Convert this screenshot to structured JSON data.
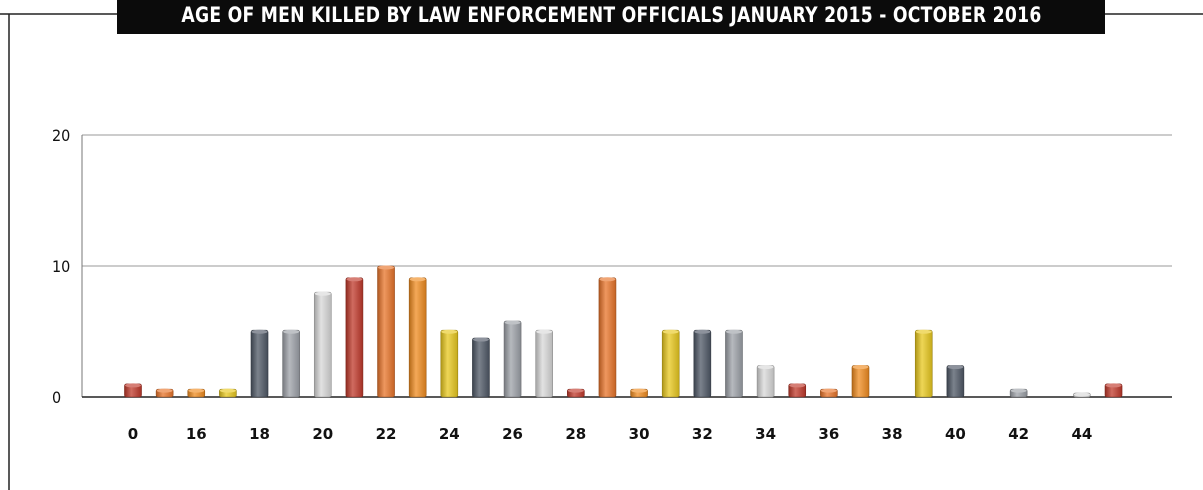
{
  "title": "AGE OF MEN KILLED BY LAW ENFORCEMENT OFFICIALS JANUARY 2015 - OCTOBER 2016",
  "chart_data": {
    "type": "bar",
    "title": "AGE OF MEN KILLED BY LAW ENFORCEMENT OFFICIALS JANUARY 2015 - OCTOBER 2016",
    "xlabel": "",
    "ylabel": "",
    "ylim": [
      0,
      20
    ],
    "yticks": [
      0,
      10,
      20
    ],
    "grid": true,
    "x_tick_labels": [
      "0",
      "16",
      "18",
      "20",
      "22",
      "24",
      "26",
      "28",
      "30",
      "32",
      "34",
      "36",
      "38",
      "40",
      "42",
      "44"
    ],
    "values": [
      1,
      0.6,
      0.6,
      0.6,
      5.1,
      5.1,
      8,
      9.1,
      10,
      9.1,
      5.1,
      4.5,
      5.8,
      5.1,
      0.6,
      9.1,
      0.6,
      5.1,
      5.1,
      5.1,
      2.4,
      1,
      0.6,
      2.4,
      0,
      5.1,
      2.4,
      0,
      0.6,
      0,
      0.3,
      1
    ],
    "colors": [
      "#c0392b",
      "#e8742a",
      "#f08c20",
      "#e8c81e",
      "#4f5866",
      "#9da1a8",
      "#d8d8d8",
      "#c0392b",
      "#e8742a",
      "#f08c20",
      "#e8c81e",
      "#4f5866",
      "#9da1a8",
      "#d8d8d8",
      "#c0392b",
      "#e8742a",
      "#f08c20",
      "#e8c81e",
      "#4f5866",
      "#9da1a8",
      "#d8d8d8",
      "#c0392b",
      "#e8742a",
      "#f08c20",
      "#e8c81e",
      "#e8c81e",
      "#4f5866",
      "#9da1a8",
      "#9da1a8",
      "#d8d8d8",
      "#d8d8d8",
      "#c0392b"
    ],
    "highlight_tick_color": "#7a2a16"
  }
}
